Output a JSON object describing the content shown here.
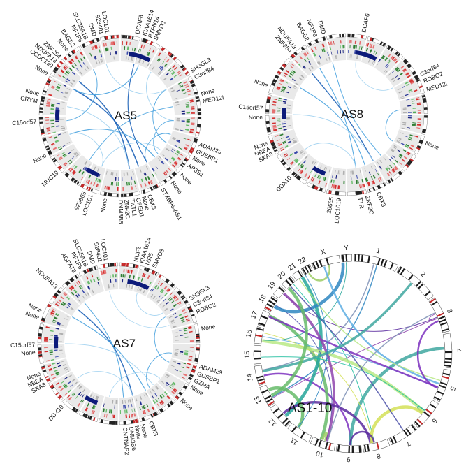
{
  "panels": [
    {
      "id": "as5",
      "title": "AS5",
      "genes": [
        {
          "label": "DCAF6",
          "angle": 12
        },
        {
          "label": "KIAA1614",
          "angle": 17
        },
        {
          "label": "PTPN14",
          "angle": 21
        },
        {
          "label": "SMYD3",
          "angle": 25
        },
        {
          "label": "SH3GL3",
          "angle": 58
        },
        {
          "label": "C3orf84",
          "angle": 63
        },
        {
          "label": "None",
          "angle": 75
        },
        {
          "label": "MED12L",
          "angle": 80
        },
        {
          "label": "ADAM29",
          "angle": 110
        },
        {
          "label": "GUSBP1",
          "angle": 115
        },
        {
          "label": "None",
          "angle": 120
        },
        {
          "label": "AP3S1",
          "angle": 126
        },
        {
          "label": "None",
          "angle": 134
        },
        {
          "label": "None",
          "angle": 142
        },
        {
          "label": "STXBP6-AS1",
          "angle": 150
        },
        {
          "label": "CBX3",
          "angle": 160
        },
        {
          "label": "None",
          "angle": 164
        },
        {
          "label": "CPED1",
          "angle": 168
        },
        {
          "label": "TKTL1",
          "angle": 172
        },
        {
          "label": "ZNF2C",
          "angle": 176
        },
        {
          "label": "DNM3B6",
          "angle": 180
        },
        {
          "label": "None",
          "angle": 190
        },
        {
          "label": "LOC101",
          "angle": 200
        },
        {
          "label": "929665",
          "angle": 205
        },
        {
          "label": "MUC19",
          "angle": 228
        },
        {
          "label": "None",
          "angle": 242
        },
        {
          "label": "C15orf57",
          "angle": 266
        },
        {
          "label": "CRYM",
          "angle": 280
        },
        {
          "label": "None",
          "angle": 285
        },
        {
          "label": "None",
          "angle": 300
        },
        {
          "label": "CCDC130",
          "angle": 306
        },
        {
          "label": "NDUFA13",
          "angle": 310
        },
        {
          "label": "ZNF254",
          "angle": 314
        },
        {
          "label": "None",
          "angle": 321
        },
        {
          "label": "BAGE2",
          "angle": 326
        },
        {
          "label": "NF1P6",
          "angle": 332
        },
        {
          "label": "SLC35A1B",
          "angle": 336
        },
        {
          "label": "DMD",
          "angle": 342
        },
        {
          "label": "928401",
          "angle": 347
        },
        {
          "label": "LOC101",
          "angle": 351
        }
      ]
    },
    {
      "id": "as8",
      "title": "AS8",
      "genes": [
        {
          "label": "DCAF6",
          "angle": 12
        },
        {
          "label": "C3orf84",
          "angle": 62
        },
        {
          "label": "ROBO2",
          "angle": 67
        },
        {
          "label": "MED12L",
          "angle": 73
        },
        {
          "label": "None",
          "angle": 110
        },
        {
          "label": "CBX3",
          "angle": 158
        },
        {
          "label": "ZNF2C",
          "angle": 166
        },
        {
          "label": "TTR",
          "angle": 171
        },
        {
          "label": "LOC1019",
          "angle": 185
        },
        {
          "label": "29665",
          "angle": 190
        },
        {
          "label": "DDX10",
          "angle": 222
        },
        {
          "label": "SKA3",
          "angle": 242
        },
        {
          "label": "NBEA",
          "angle": 246
        },
        {
          "label": "None",
          "angle": 250
        },
        {
          "label": "None",
          "angle": 268
        },
        {
          "label": "C15orf57",
          "angle": 274
        },
        {
          "label": "None",
          "angle": 290
        },
        {
          "label": "ZNF254",
          "angle": 318
        },
        {
          "label": "NDUFA13",
          "angle": 322
        },
        {
          "label": "BAGE2",
          "angle": 332
        },
        {
          "label": "NF1P6",
          "angle": 338
        },
        {
          "label": "DMD",
          "angle": 344
        }
      ]
    },
    {
      "id": "as7",
      "title": "AS7",
      "genes": [
        {
          "label": "NUF2",
          "angle": 12
        },
        {
          "label": "KIAA1614",
          "angle": 16
        },
        {
          "label": "MR5",
          "angle": 20
        },
        {
          "label": "SMYD3",
          "angle": 25
        },
        {
          "label": "SH3GL3",
          "angle": 58
        },
        {
          "label": "C3orf84",
          "angle": 63
        },
        {
          "label": "ROBO2",
          "angle": 68
        },
        {
          "label": "None",
          "angle": 80
        },
        {
          "label": "ADAM29",
          "angle": 106
        },
        {
          "label": "GUSBP1",
          "angle": 111
        },
        {
          "label": "GZMA",
          "angle": 116
        },
        {
          "label": "None",
          "angle": 121
        },
        {
          "label": "None",
          "angle": 132
        },
        {
          "label": "CBX3",
          "angle": 158
        },
        {
          "label": "None",
          "angle": 164
        },
        {
          "label": "None",
          "angle": 168
        },
        {
          "label": "DNM3B6",
          "angle": 172
        },
        {
          "label": "CNTNAP2",
          "angle": 176
        },
        {
          "label": "DDX10",
          "angle": 222
        },
        {
          "label": "SKA3",
          "angle": 241
        },
        {
          "label": "NBEA",
          "angle": 245
        },
        {
          "label": "None",
          "angle": 249
        },
        {
          "label": "None",
          "angle": 264
        },
        {
          "label": "C15orf57",
          "angle": 269
        },
        {
          "label": "None",
          "angle": 288
        },
        {
          "label": "None",
          "angle": 293
        },
        {
          "label": "NDUFA13",
          "angle": 312
        },
        {
          "label": "AGPAT3",
          "angle": 328
        },
        {
          "label": "NF1P6",
          "angle": 333
        },
        {
          "label": "SLC35A1B",
          "angle": 337
        },
        {
          "label": "DMD",
          "angle": 342
        },
        {
          "label": "928401",
          "angle": 347
        },
        {
          "label": "LOC101",
          "angle": 351
        }
      ]
    },
    {
      "id": "as1-10",
      "title": "AS1-10",
      "chromosomes": [
        "1",
        "2",
        "3",
        "4",
        "5",
        "6",
        "7",
        "8",
        "9",
        "10",
        "11",
        "12",
        "13",
        "14",
        "15",
        "16",
        "17",
        "18",
        "19",
        "20",
        "21",
        "22",
        "X",
        "Y"
      ]
    }
  ]
}
